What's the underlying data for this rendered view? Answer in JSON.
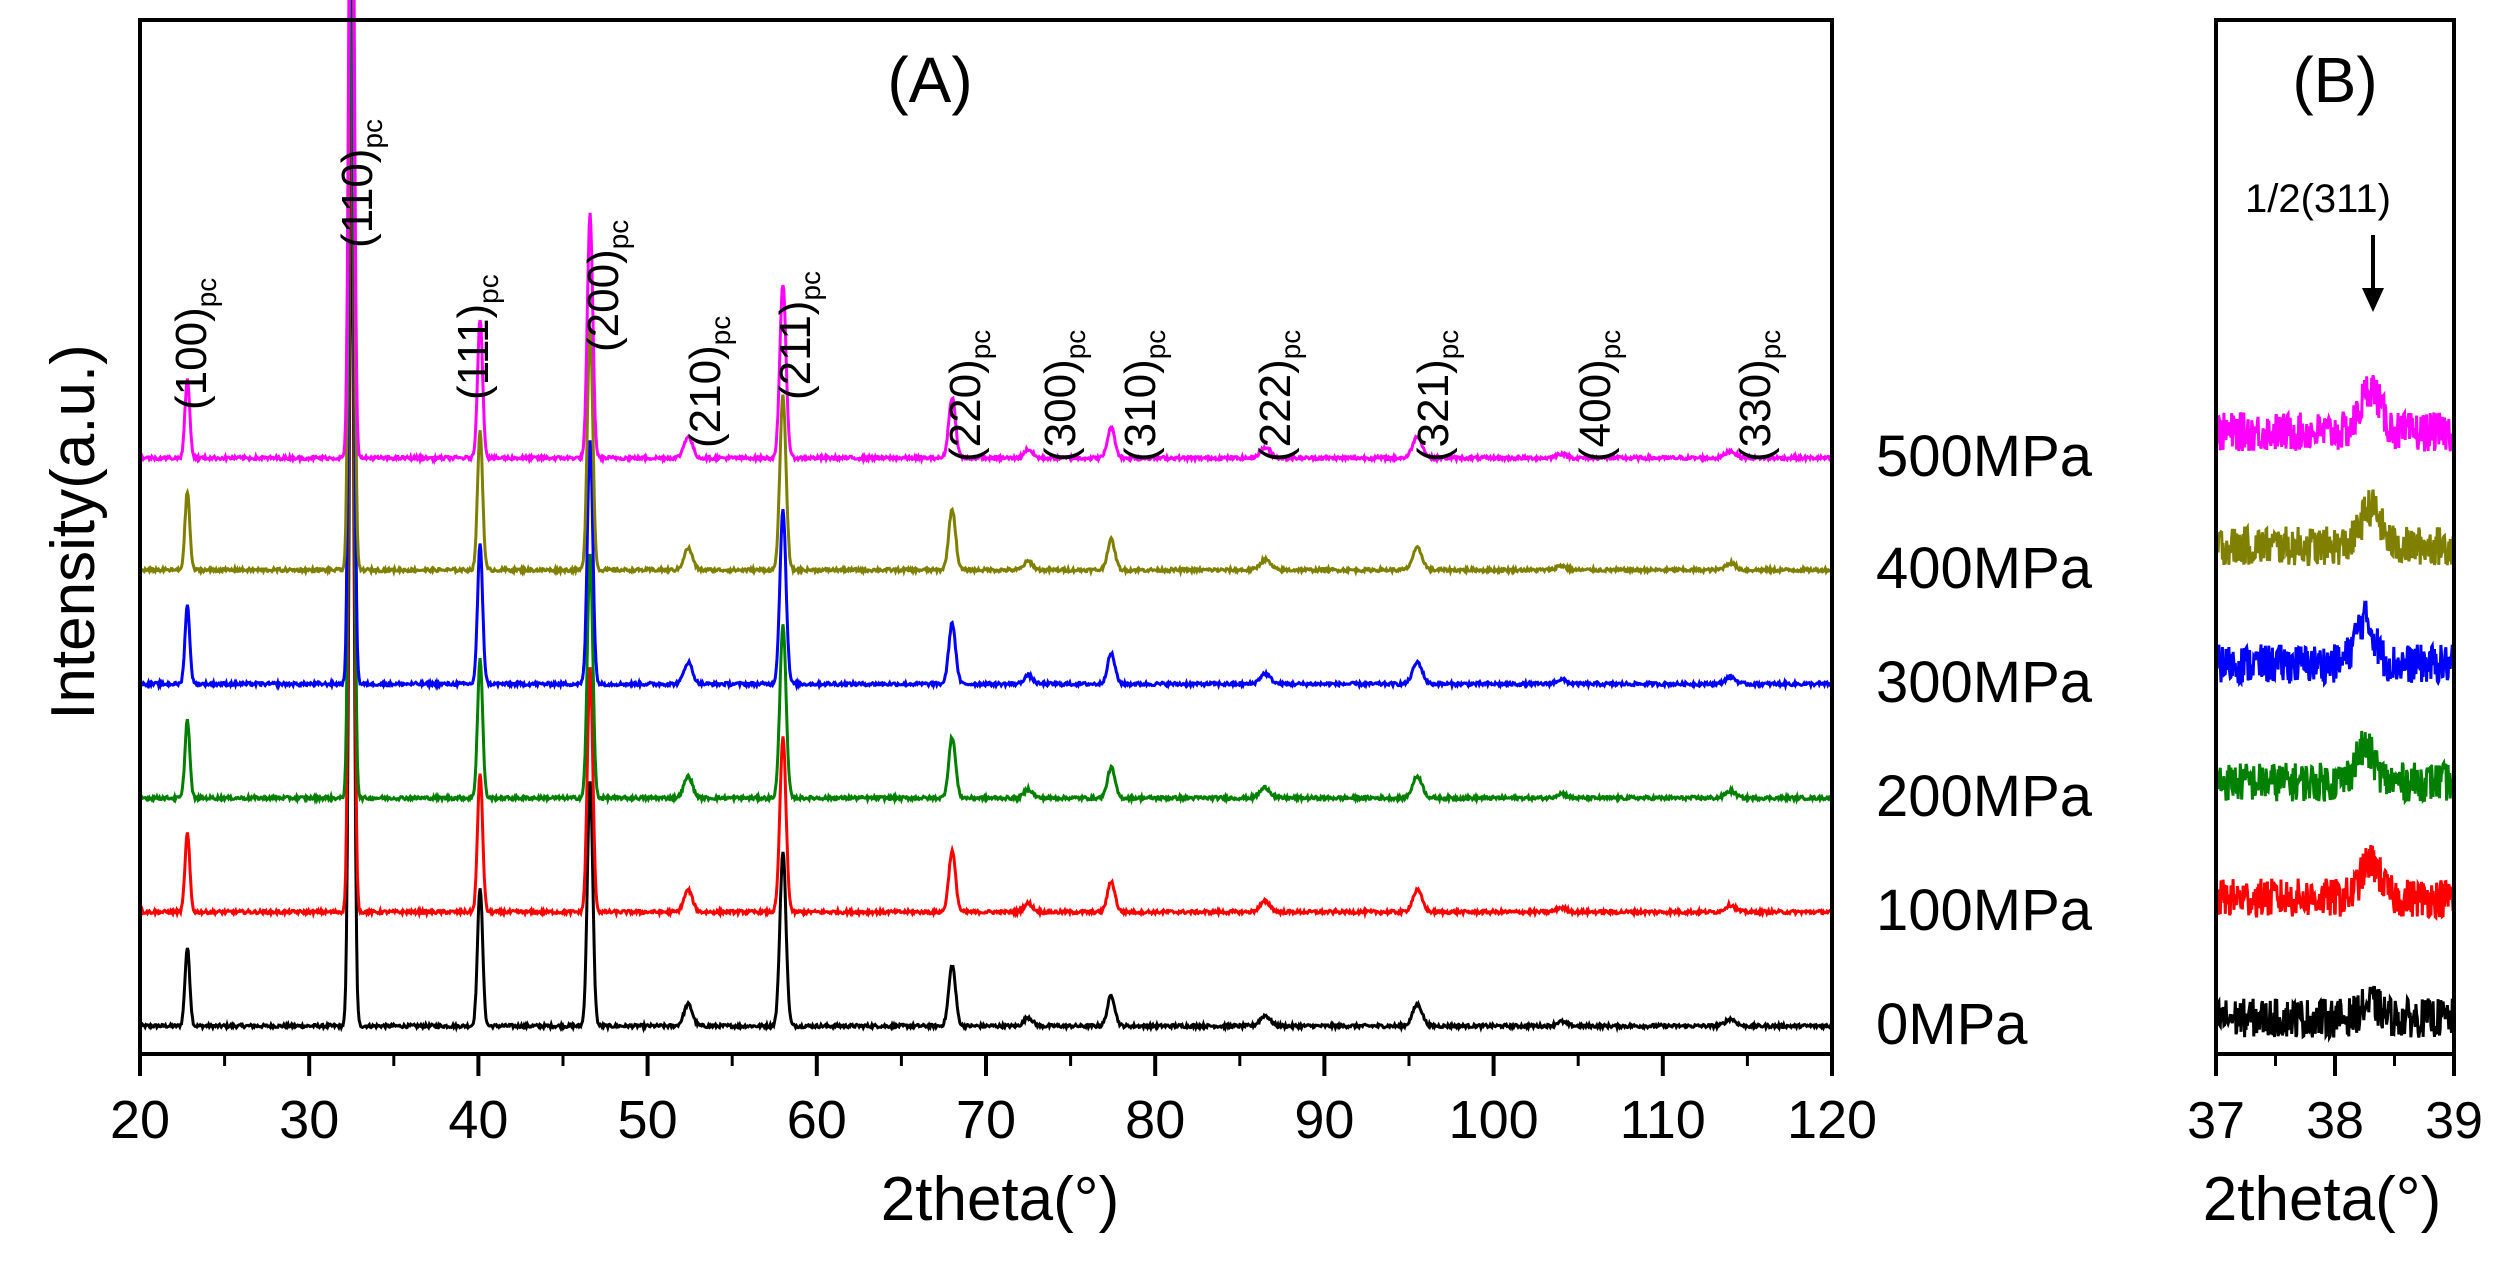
{
  "chart_data": [
    {
      "panel": "A",
      "type": "line",
      "title": "(A)",
      "xlabel": "2theta(°)",
      "ylabel": "Intensity(a.u.)",
      "xlim": [
        20,
        120
      ],
      "xticks": [
        "20",
        "30",
        "40",
        "50",
        "60",
        "70",
        "80",
        "90",
        "100",
        "110",
        "120"
      ],
      "peaks": [
        {
          "label": "(100)",
          "sub": "pc",
          "x": 22.8,
          "h": 0.09
        },
        {
          "label": "(110)",
          "sub": "pc",
          "x": 32.5,
          "h": 1.0
        },
        {
          "label": "(111)",
          "sub": "pc",
          "x": 40.1,
          "h": 0.16
        },
        {
          "label": "(200)",
          "sub": "pc",
          "x": 46.6,
          "h": 0.28
        },
        {
          "label": "(210)",
          "sub": "pc",
          "x": 52.4,
          "h": 0.025
        },
        {
          "label": "(211)",
          "sub": "pc",
          "x": 58.0,
          "h": 0.2
        },
        {
          "label": "(220)",
          "sub": "pc",
          "x": 68.0,
          "h": 0.07
        },
        {
          "label": "(300)",
          "sub": "pc",
          "x": 72.5,
          "h": 0.01
        },
        {
          "label": "(310)",
          "sub": "pc",
          "x": 77.4,
          "h": 0.035
        },
        {
          "label": "(222)",
          "sub": "pc",
          "x": 86.5,
          "h": 0.012
        },
        {
          "label": "(321)",
          "sub": "pc",
          "x": 95.5,
          "h": 0.025
        },
        {
          "label": "(400)",
          "sub": "pc",
          "x": 104.0,
          "h": 0.005
        },
        {
          "label": "(330)",
          "sub": "pc",
          "x": 114.0,
          "h": 0.008
        }
      ],
      "series": [
        {
          "name": "0MPa",
          "color": "#000000"
        },
        {
          "name": "100MPa",
          "color": "#ff0000"
        },
        {
          "name": "200MPa",
          "color": "#008000"
        },
        {
          "name": "300MPa",
          "color": "#0000ff"
        },
        {
          "name": "400MPa",
          "color": "#808000"
        },
        {
          "name": "500MPa",
          "color": "#ff00ff"
        }
      ]
    },
    {
      "panel": "B",
      "type": "line",
      "title": "(B)",
      "xlabel": "2theta(°)",
      "xlim": [
        37,
        39
      ],
      "xticks": [
        "37",
        "38",
        "39"
      ],
      "annotation": "1/2(311)",
      "annotation_x": 38.3,
      "series": [
        {
          "name": "0MPa",
          "color": "#000000",
          "peak_x": 38.3,
          "peak_amp": 0.5
        },
        {
          "name": "100MPa",
          "color": "#ff0000",
          "peak_x": 38.3,
          "peak_amp": 1.3
        },
        {
          "name": "200MPa",
          "color": "#008000",
          "peak_x": 38.25,
          "peak_amp": 1.2
        },
        {
          "name": "300MPa",
          "color": "#0000ff",
          "peak_x": 38.25,
          "peak_amp": 1.6
        },
        {
          "name": "400MPa",
          "color": "#808000",
          "peak_x": 38.3,
          "peak_amp": 1.4
        },
        {
          "name": "500MPa",
          "color": "#ff00ff",
          "peak_x": 38.3,
          "peak_amp": 1.6
        }
      ]
    }
  ]
}
